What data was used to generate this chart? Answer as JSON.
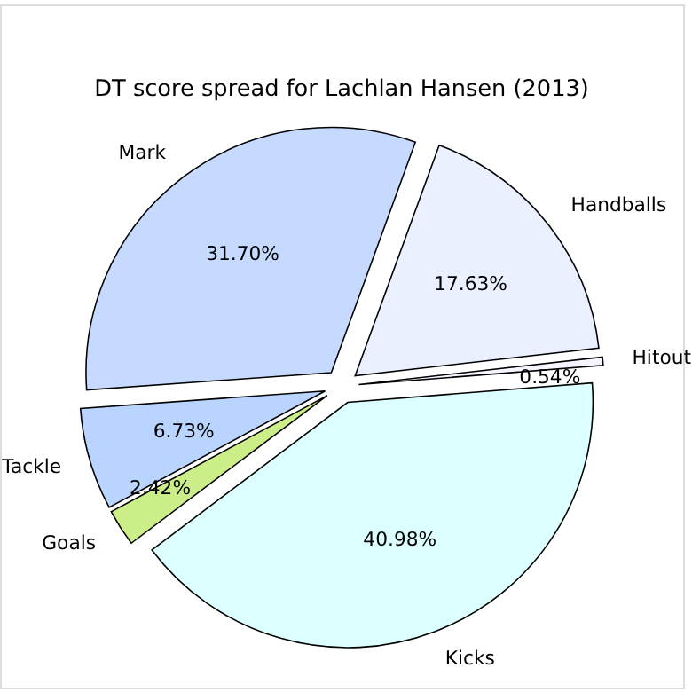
{
  "chart_data": {
    "type": "pie",
    "title": "DT score spread for Lachlan Hansen (2013)",
    "categories": [
      "Handballs",
      "Hitout",
      "Kicks",
      "Goals",
      "Tackle",
      "Mark"
    ],
    "values": [
      17.63,
      0.54,
      40.98,
      2.42,
      6.73,
      31.7
    ],
    "value_labels": [
      "17.63%",
      "0.54%",
      "40.98%",
      "2.42%",
      "6.73%",
      "31.70%"
    ],
    "colors": [
      "#eaf0ff",
      "#f5f5ff",
      "#dcffff",
      "#ccee88",
      "#b8d4ff",
      "#c6d9ff"
    ]
  }
}
